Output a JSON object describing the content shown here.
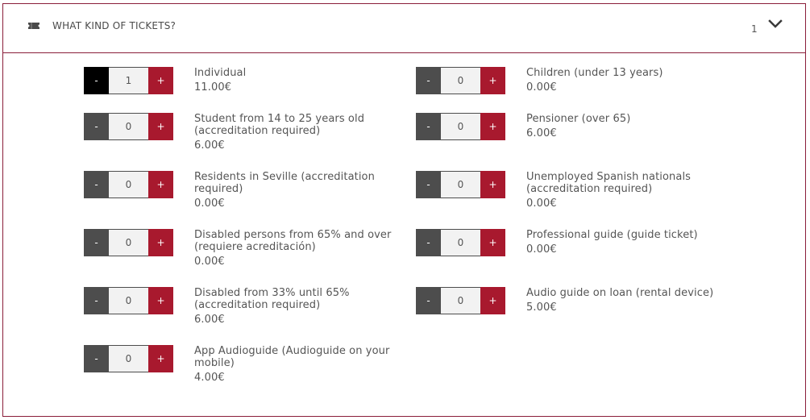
{
  "header": {
    "title": "WHAT KIND OF TICKETS?",
    "count": "1",
    "icon": "ticket-icon",
    "toggle_icon": "chevron-down-icon"
  },
  "colors": {
    "border": "#8a1e3a",
    "plus": "#a8192e",
    "minus": "#4d4d4d",
    "minus_active": "#000000"
  },
  "stepper": {
    "minus_label": "-",
    "plus_label": "+"
  },
  "tickets": [
    {
      "name": "Individual",
      "price": "11.00€",
      "qty": "1"
    },
    {
      "name": "Children (under 13 years)",
      "price": "0.00€",
      "qty": "0"
    },
    {
      "name": "Student from 14 to 25 years old (accreditation required)",
      "price": "6.00€",
      "qty": "0"
    },
    {
      "name": "Pensioner (over 65)",
      "price": "6.00€",
      "qty": "0"
    },
    {
      "name": "Residents in Seville (accreditation required)",
      "price": "0.00€",
      "qty": "0"
    },
    {
      "name": "Unemployed Spanish nationals (accreditation required)",
      "price": "0.00€",
      "qty": "0"
    },
    {
      "name": "Disabled persons from 65% and over (requiere acreditación)",
      "price": "0.00€",
      "qty": "0"
    },
    {
      "name": "Professional guide (guide ticket)",
      "price": "0.00€",
      "qty": "0"
    },
    {
      "name": "Disabled from 33% until 65% (accreditation required)",
      "price": "6.00€",
      "qty": "0"
    },
    {
      "name": "Audio guide on loan (rental device)",
      "price": "5.00€",
      "qty": "0"
    },
    {
      "name": "App Audioguide (Audioguide on your mobile)",
      "price": "4.00€",
      "qty": "0"
    }
  ]
}
